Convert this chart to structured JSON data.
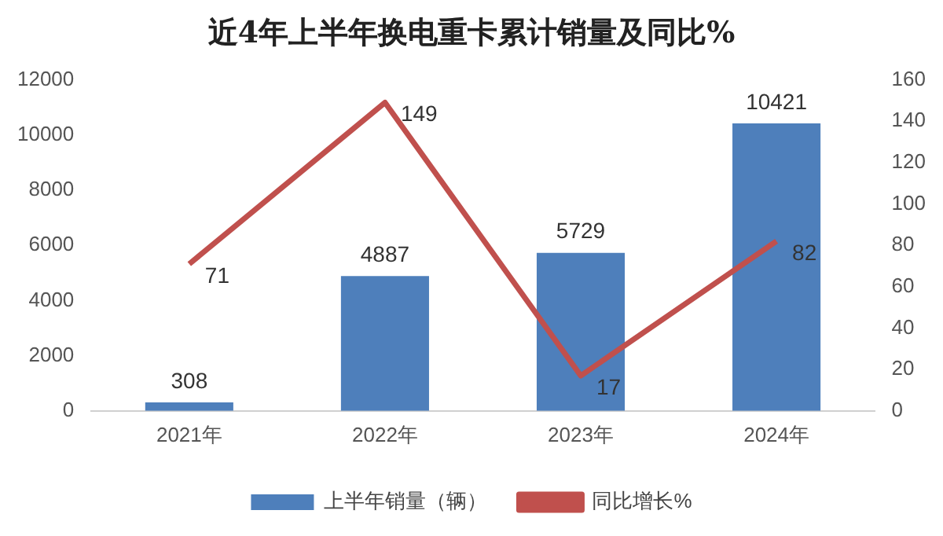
{
  "chart_data": {
    "type": "bar",
    "title": "近4年上半年换电重卡累计销量及同比%",
    "categories": [
      "2021年",
      "2022年",
      "2023年",
      "2024年"
    ],
    "series": [
      {
        "name": "上半年销量（辆）",
        "color": "#4e7fbb",
        "values": [
          308,
          4887,
          5729,
          10421
        ]
      },
      {
        "name": "同比增长%",
        "type": "line",
        "axis": "y2",
        "color": "#c0504d",
        "values": [
          71,
          149,
          17,
          82
        ]
      }
    ],
    "ylim": [
      0,
      12000
    ],
    "yticks": [
      0,
      2000,
      4000,
      6000,
      8000,
      10000,
      12000
    ],
    "y2lim": [
      0,
      160
    ],
    "y2ticks": [
      0,
      20,
      40,
      60,
      80,
      100,
      120,
      140,
      160
    ],
    "data_labels": true,
    "legend": "bottom",
    "grid": false,
    "marker": "none"
  }
}
